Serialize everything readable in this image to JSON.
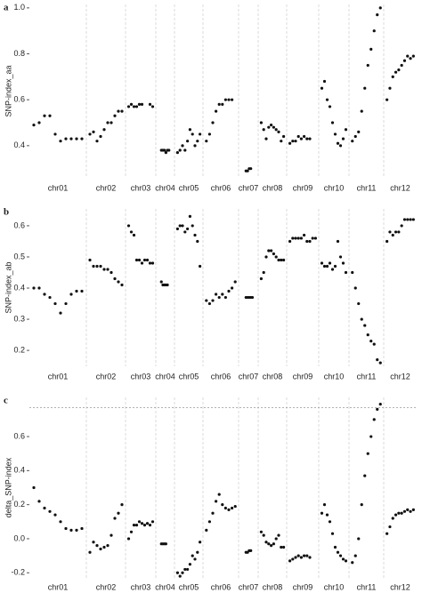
{
  "chart_data": [
    {
      "type": "scatter",
      "panel_label": "a",
      "ylabel": "SNP-index_aa",
      "categories": [
        "chr01",
        "chr02",
        "chr03",
        "chr04",
        "chr05",
        "chr06",
        "chr07",
        "chr08",
        "chr09",
        "chr10",
        "chr11",
        "chr12"
      ],
      "values": [
        [
          0.49,
          0.5,
          0.53,
          0.53,
          0.45,
          0.42,
          0.43,
          0.43,
          0.43,
          0.43
        ],
        [
          0.45,
          0.46,
          0.42,
          0.44,
          0.47,
          0.5,
          0.5,
          0.53,
          0.55,
          0.55
        ],
        [
          0.57,
          0.58,
          0.57,
          0.57,
          0.58,
          0.58,
          null,
          null,
          0.58,
          0.57
        ],
        [
          null,
          null,
          0.38,
          0.38,
          0.38,
          0.37,
          0.38,
          0.38,
          null,
          null
        ],
        [
          0.37,
          0.38,
          0.4,
          0.38,
          0.42,
          0.47,
          0.45,
          0.4,
          0.42,
          0.45
        ],
        [
          0.42,
          0.45,
          0.5,
          0.55,
          0.58,
          0.58,
          0.6,
          0.6,
          0.6,
          null
        ],
        [
          null,
          null,
          null,
          0.29,
          0.29,
          0.3,
          0.3,
          null,
          null,
          null
        ],
        [
          0.5,
          0.47,
          0.43,
          0.48,
          0.49,
          0.48,
          0.47,
          0.46,
          0.42,
          0.44
        ],
        [
          0.41,
          0.42,
          0.42,
          0.44,
          0.43,
          0.44,
          0.43,
          0.43,
          null,
          null
        ],
        [
          0.65,
          0.68,
          0.6,
          0.57,
          0.5,
          0.45,
          0.41,
          0.4,
          0.43,
          0.47
        ],
        [
          0.42,
          0.44,
          0.46,
          0.55,
          0.65,
          0.75,
          0.82,
          0.9,
          0.97,
          1.0
        ],
        [
          0.6,
          0.65,
          0.7,
          0.72,
          0.73,
          0.75,
          0.77,
          0.79,
          0.78,
          0.79
        ]
      ],
      "color": "#111111",
      "ylim": [
        0.26,
        1.015
      ],
      "yticks": [
        0.4,
        0.6,
        0.8,
        {
          "value": 1.0,
          "label": "1.0"
        }
      ]
    },
    {
      "type": "scatter",
      "panel_label": "b",
      "ylabel": "SNP-index_ab",
      "categories": [
        "chr01",
        "chr02",
        "chr03",
        "chr04",
        "chr05",
        "chr06",
        "chr07",
        "chr08",
        "chr09",
        "chr10",
        "chr11",
        "chr12"
      ],
      "values": [
        [
          0.4,
          0.4,
          0.38,
          0.37,
          0.35,
          0.32,
          0.35,
          0.38,
          0.39,
          0.39
        ],
        [
          0.49,
          0.47,
          0.47,
          0.47,
          0.46,
          0.46,
          0.45,
          0.43,
          0.42,
          0.41
        ],
        [
          0.6,
          0.58,
          0.57,
          0.49,
          0.49,
          0.48,
          0.49,
          0.49,
          0.48,
          0.48
        ],
        [
          null,
          null,
          0.42,
          0.41,
          0.41,
          0.41,
          0.41,
          null,
          null,
          null
        ],
        [
          0.59,
          0.6,
          0.6,
          0.58,
          0.59,
          0.63,
          0.6,
          0.57,
          0.55,
          0.47
        ],
        [
          0.36,
          0.35,
          0.36,
          0.38,
          0.37,
          0.38,
          0.37,
          0.39,
          0.4,
          0.42
        ],
        [
          null,
          null,
          null,
          0.37,
          0.37,
          0.37,
          0.37,
          0.37,
          null,
          null
        ],
        [
          0.43,
          0.45,
          0.5,
          0.52,
          0.52,
          0.51,
          0.5,
          0.49,
          0.49,
          0.49
        ],
        [
          0.55,
          0.56,
          0.56,
          0.56,
          0.56,
          0.57,
          0.55,
          0.55,
          0.56,
          0.56
        ],
        [
          0.48,
          0.47,
          0.47,
          0.48,
          0.46,
          0.47,
          0.55,
          0.5,
          0.48,
          0.45
        ],
        [
          0.45,
          0.4,
          0.35,
          0.3,
          0.28,
          0.25,
          0.23,
          0.22,
          0.17,
          0.16
        ],
        [
          0.55,
          0.58,
          0.57,
          0.58,
          0.58,
          0.6,
          0.62,
          0.62,
          0.62,
          0.62
        ]
      ],
      "color": "#111111",
      "ylim": [
        0.149,
        0.654
      ],
      "yticks": [
        0.2,
        0.3,
        0.4,
        0.5,
        0.6
      ]
    },
    {
      "type": "scatter",
      "panel_label": "c",
      "ylabel": "delta_SNP-index",
      "categories": [
        "chr01",
        "chr02",
        "chr03",
        "chr04",
        "chr05",
        "chr06",
        "chr07",
        "chr08",
        "chr09",
        "chr10",
        "chr11",
        "chr12"
      ],
      "values": [
        [
          0.3,
          0.22,
          0.18,
          0.16,
          0.14,
          0.1,
          0.06,
          0.05,
          0.05,
          0.06
        ],
        [
          -0.08,
          -0.02,
          -0.04,
          -0.06,
          -0.05,
          -0.04,
          0.02,
          0.12,
          0.15,
          0.2
        ],
        [
          0.0,
          0.04,
          0.08,
          0.08,
          0.1,
          0.09,
          0.08,
          0.09,
          0.08,
          0.1
        ],
        [
          null,
          null,
          -0.03,
          -0.03,
          -0.03,
          -0.03,
          null,
          null,
          null,
          null
        ],
        [
          -0.2,
          -0.22,
          -0.2,
          -0.18,
          -0.18,
          -0.15,
          -0.1,
          -0.12,
          -0.08,
          -0.02
        ],
        [
          0.05,
          0.1,
          0.15,
          0.22,
          0.26,
          0.2,
          0.18,
          0.17,
          0.18,
          0.19
        ],
        [
          null,
          null,
          null,
          -0.08,
          -0.08,
          -0.07,
          -0.07,
          null,
          null,
          null
        ],
        [
          0.04,
          0.02,
          -0.02,
          -0.03,
          -0.04,
          -0.03,
          0.0,
          0.02,
          -0.05,
          -0.05
        ],
        [
          -0.13,
          -0.12,
          -0.11,
          -0.1,
          -0.11,
          -0.1,
          -0.1,
          -0.11,
          null,
          null
        ],
        [
          0.15,
          0.2,
          0.14,
          0.1,
          0.03,
          -0.05,
          -0.08,
          -0.1,
          -0.12,
          -0.13
        ],
        [
          -0.14,
          -0.1,
          0.0,
          0.2,
          0.37,
          0.5,
          0.6,
          0.7,
          0.76,
          0.79
        ],
        [
          0.03,
          0.07,
          0.12,
          0.14,
          0.15,
          0.15,
          0.16,
          0.17,
          0.16,
          0.17
        ]
      ],
      "color": "#111111",
      "ylim": [
        -0.23,
        0.83
      ],
      "yticks": [
        {
          "value": -0.2,
          "label": "-0.2"
        },
        {
          "value": 0,
          "label": "0.0"
        },
        0.2,
        0.4,
        0.6
      ],
      "reference_line": 0.77
    }
  ]
}
